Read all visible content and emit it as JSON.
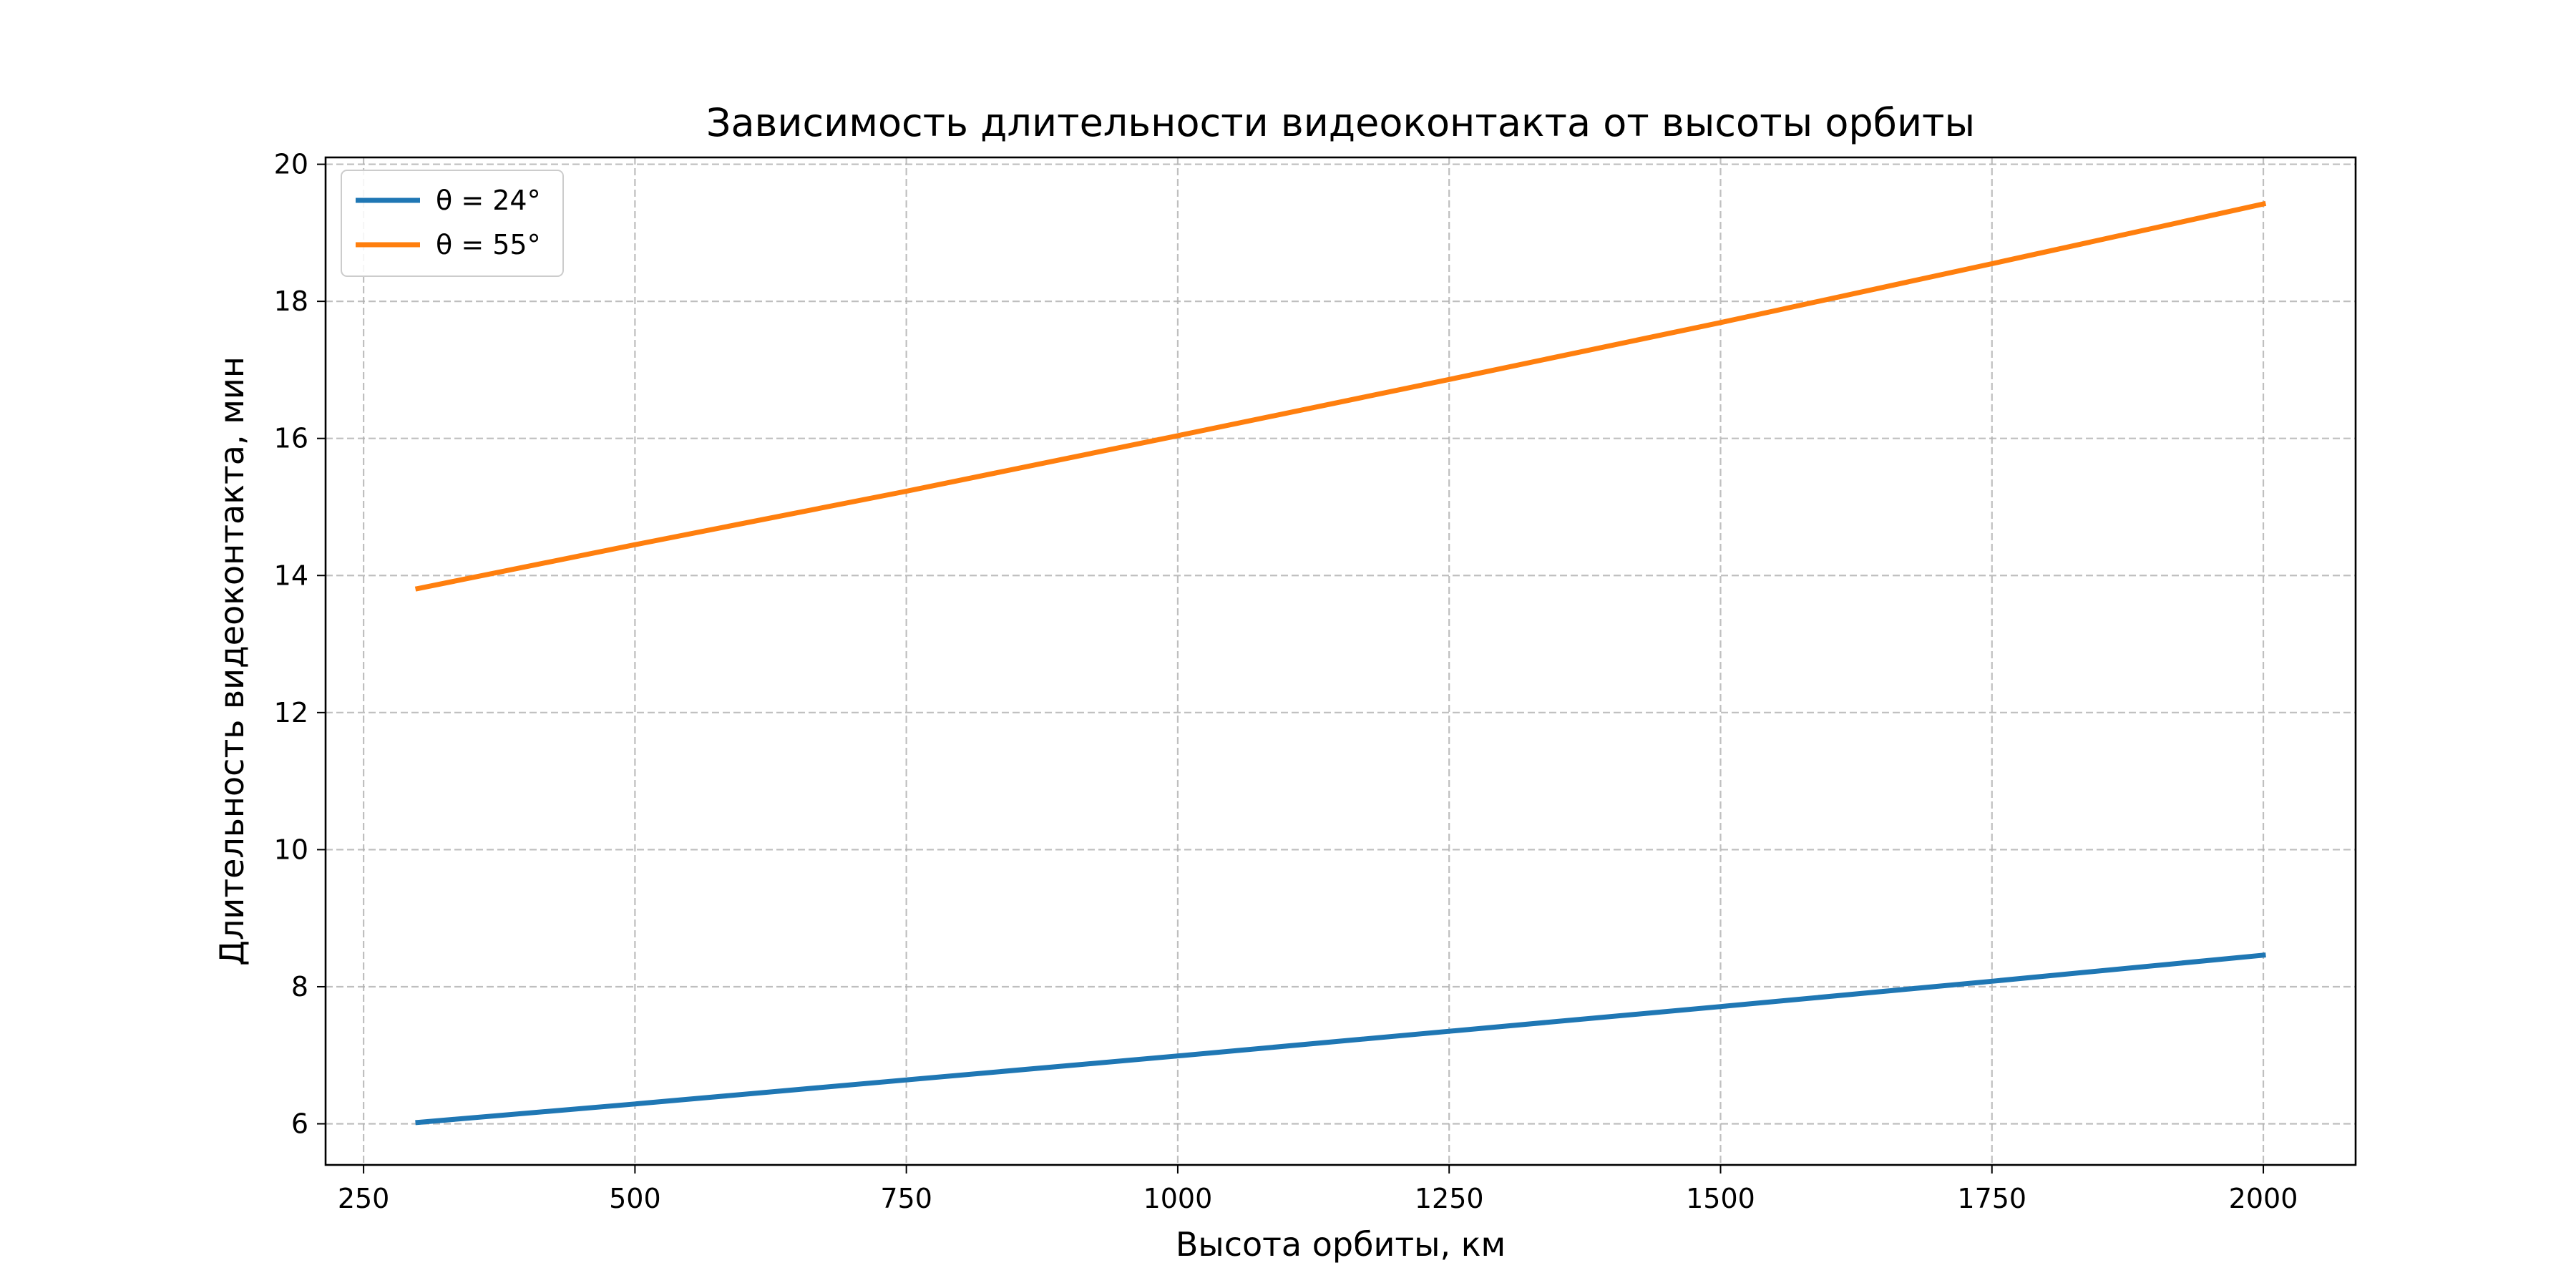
{
  "chart_data": {
    "type": "line",
    "title": "Зависимость длительности видеоконтакта от высоты орбиты",
    "xlabel": "Высота орбиты, км",
    "ylabel": "Длительность видеоконтакта, мин",
    "xlim": [
      215,
      2085
    ],
    "ylim": [
      5.4,
      20.1
    ],
    "xticks": [
      250,
      500,
      750,
      1000,
      1250,
      1500,
      1750,
      2000
    ],
    "yticks": [
      6,
      8,
      10,
      12,
      14,
      16,
      18,
      20
    ],
    "grid": true,
    "legend_position": "top-left",
    "x": [
      300,
      500,
      750,
      1000,
      1250,
      1500,
      1750,
      2000
    ],
    "series": [
      {
        "name": "θ = 24°",
        "color": "#1f77b4",
        "values": [
          6.02,
          6.29,
          6.64,
          6.99,
          7.35,
          7.71,
          8.08,
          8.46
        ]
      },
      {
        "name": "θ = 55°",
        "color": "#ff7f0e",
        "values": [
          13.81,
          14.45,
          15.23,
          16.04,
          16.86,
          17.69,
          18.55,
          19.42
        ]
      }
    ]
  }
}
